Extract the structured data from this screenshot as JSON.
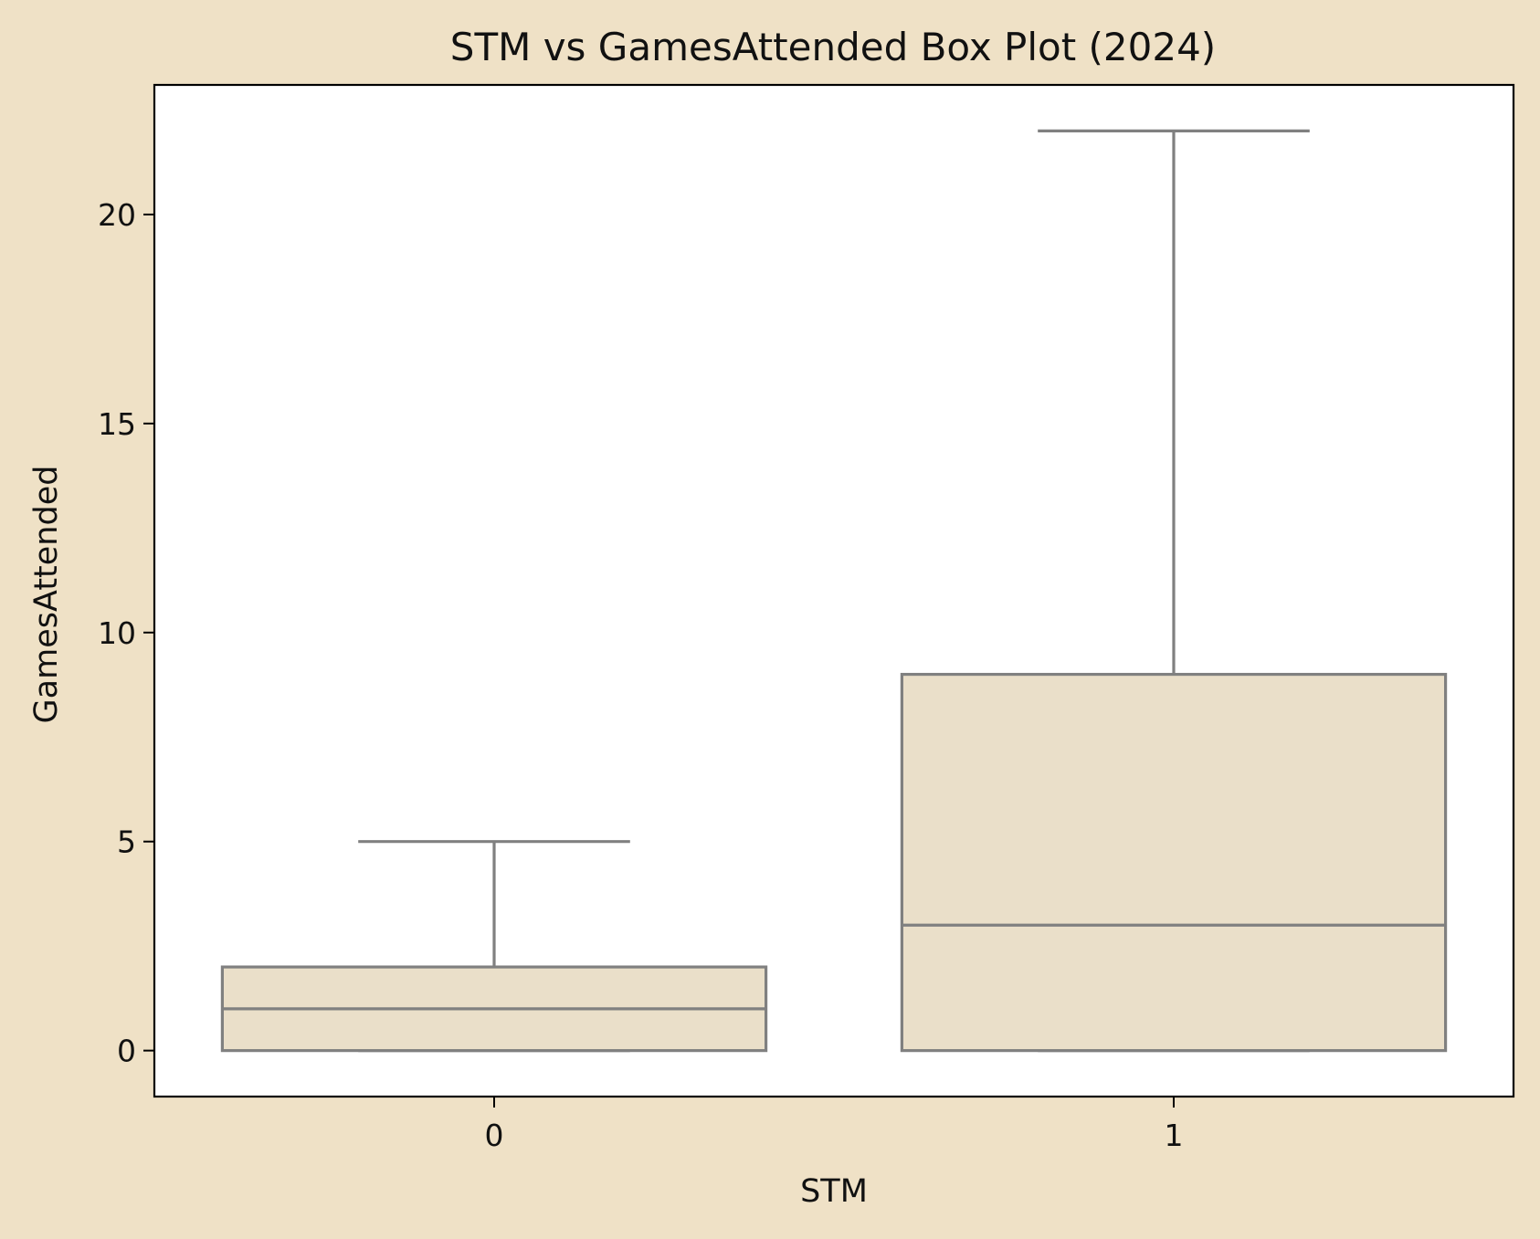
{
  "chart_data": {
    "type": "box",
    "title": "STM vs GamesAttended Box Plot (2024)",
    "xlabel": "STM",
    "ylabel": "GamesAttended",
    "categories": [
      "0",
      "1"
    ],
    "boxes": [
      {
        "category": "0",
        "whisker_low": 0,
        "q1": 0,
        "median": 1,
        "q3": 2,
        "whisker_high": 5
      },
      {
        "category": "1",
        "whisker_low": 0,
        "q1": 0,
        "median": 3,
        "q3": 9,
        "whisker_high": 22
      }
    ],
    "ylim": [
      -1.1,
      23.1
    ],
    "yticks": [
      0,
      5,
      10,
      15,
      20
    ],
    "grid": false,
    "colors": {
      "figure_background": "#EFE1C6",
      "plot_background": "#FFFFFF",
      "box_fill": "#EADFC9",
      "box_stroke": "#808080",
      "axes_stroke": "#000000"
    }
  }
}
